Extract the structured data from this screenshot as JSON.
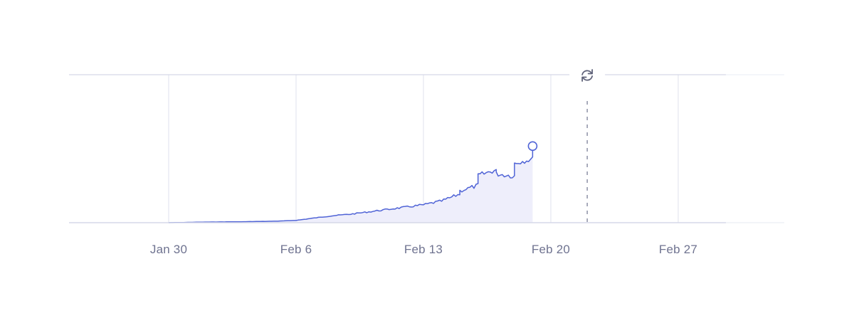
{
  "chart_data": {
    "type": "area",
    "x_axis": {
      "type": "time",
      "range": [
        "2025-01-24",
        "2025-03-05"
      ],
      "ticks": [
        {
          "label": "Jan 30",
          "date": "2025-01-30"
        },
        {
          "label": "Feb 6",
          "date": "2025-02-06"
        },
        {
          "label": "Feb 13",
          "date": "2025-02-13"
        },
        {
          "label": "Feb 20",
          "date": "2025-02-20"
        },
        {
          "label": "Feb 27",
          "date": "2025-02-27"
        }
      ]
    },
    "y_axis": {
      "labels_visible": false,
      "range": [
        0,
        100
      ]
    },
    "grid": {
      "vertical": true,
      "horizontal": false
    },
    "refresh_marker_date": "2025-02-22",
    "last_point_date": "2025-02-19",
    "series": [
      {
        "color": "#4f63d6",
        "fill": "#eeeefb",
        "x": [
          "2025-01-30",
          "2025-02-01",
          "2025-02-03",
          "2025-02-05",
          "2025-02-06",
          "2025-02-07",
          "2025-02-08",
          "2025-02-09",
          "2025-02-10",
          "2025-02-11",
          "2025-02-12",
          "2025-02-13",
          "2025-02-14",
          "2025-02-15",
          "2025-02-15",
          "2025-02-16",
          "2025-02-16",
          "2025-02-17",
          "2025-02-17",
          "2025-02-18",
          "2025-02-18",
          "2025-02-19",
          "2025-02-19"
        ],
        "y": [
          0.0,
          0.4,
          0.6,
          1.0,
          1.5,
          3.0,
          4.5,
          5.5,
          7.0,
          8.5,
          10.0,
          11.5,
          14.0,
          18.5,
          20.5,
          24.0,
          30.5,
          34.0,
          31.5,
          30.0,
          38.5,
          41.0,
          48.0
        ]
      }
    ]
  },
  "refresh_icon": "refresh-icon",
  "colors": {
    "line": "#4f63d6",
    "area": "#eeeefb",
    "grid": "#e6e8f2",
    "axis": "#d5d8e8",
    "label": "#6f7390"
  }
}
